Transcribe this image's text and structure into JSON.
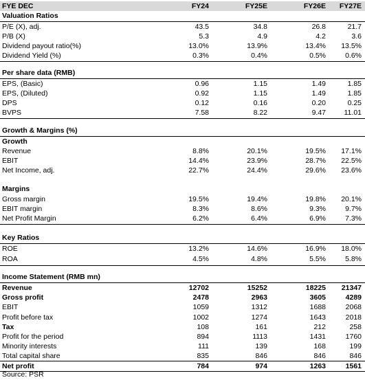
{
  "header": {
    "label": "FYE DEC",
    "years": [
      "FY24",
      "FY25E",
      "FY26E",
      "FY27E"
    ]
  },
  "valuation": {
    "title": "Valuation Ratios",
    "rows": [
      {
        "label": "P/E (X), adj.",
        "values": [
          "43.5",
          "34.8",
          "26.8",
          "21.7"
        ]
      },
      {
        "label": "P/B (X)",
        "values": [
          "5.3",
          "4.9",
          "4.2",
          "3.6"
        ]
      },
      {
        "label": "Dividend payout ratio(%)",
        "values": [
          "13.0%",
          "13.9%",
          "13.4%",
          "13.5%"
        ]
      },
      {
        "label": "Dividend Yield (%)",
        "values": [
          "0.3%",
          "0.4%",
          "0.5%",
          "0.6%"
        ]
      }
    ]
  },
  "per_share": {
    "title": "Per share data (RMB)",
    "rows": [
      {
        "label": "EPS, (Basic)",
        "values": [
          "0.96",
          "1.15",
          "1.49",
          "1.85"
        ]
      },
      {
        "label": "EPS, (Diluted)",
        "values": [
          "0.92",
          "1.15",
          "1.49",
          "1.85"
        ]
      },
      {
        "label": "DPS",
        "values": [
          "0.12",
          "0.16",
          "0.20",
          "0.25"
        ]
      },
      {
        "label": "BVPS",
        "values": [
          "7.58",
          "8.22",
          "9.47",
          "11.01"
        ]
      }
    ]
  },
  "growth_margins": {
    "title": "Growth & Margins (%)",
    "growth_title": "Growth",
    "growth_rows": [
      {
        "label": "Revenue",
        "values": [
          "8.8%",
          "20.1%",
          "19.5%",
          "17.1%"
        ]
      },
      {
        "label": "EBIT",
        "values": [
          "14.4%",
          "23.9%",
          "28.7%",
          "22.5%"
        ]
      },
      {
        "label": "Net Income, adj.",
        "values": [
          "22.7%",
          "24.4%",
          "29.6%",
          "23.6%"
        ]
      }
    ],
    "margins_title": "Margins",
    "margin_rows": [
      {
        "label": "Gross margin",
        "values": [
          "19.5%",
          "19.4%",
          "19.8%",
          "20.1%"
        ]
      },
      {
        "label": "EBIT margin",
        "values": [
          "8.3%",
          "8.6%",
          "9.3%",
          "9.7%"
        ]
      },
      {
        "label": "Net Profit Margin",
        "values": [
          "6.2%",
          "6.4%",
          "6.9%",
          "7.3%"
        ]
      }
    ]
  },
  "key_ratios": {
    "title": "Key Ratios",
    "rows": [
      {
        "label": "ROE",
        "values": [
          "13.2%",
          "14.6%",
          "16.9%",
          "18.0%"
        ]
      },
      {
        "label": "ROA",
        "values": [
          "4.5%",
          "4.8%",
          "5.5%",
          "5.8%"
        ]
      }
    ]
  },
  "income_statement": {
    "title": "Income Statement (RMB mn)",
    "rows": [
      {
        "label": "Revenue",
        "values": [
          "12702",
          "15252",
          "18225",
          "21347"
        ],
        "bold": true
      },
      {
        "label": "Gross profit",
        "values": [
          "2478",
          "2963",
          "3605",
          "4289"
        ],
        "bold": true
      },
      {
        "label": "EBIT",
        "values": [
          "1059",
          "1312",
          "1688",
          "2068"
        ]
      },
      {
        "label": "Profit before tax",
        "values": [
          "1002",
          "1274",
          "1643",
          "2018"
        ]
      },
      {
        "label": "Tax",
        "values": [
          "108",
          "161",
          "212",
          "258"
        ],
        "bold": true
      },
      {
        "label": "Profit for the period",
        "values": [
          "894",
          "1113",
          "1431",
          "1760"
        ]
      },
      {
        "label": "Minority interests",
        "values": [
          "111",
          "139",
          "168",
          "199"
        ]
      },
      {
        "label": "Total capital share",
        "values": [
          "835",
          "846",
          "846",
          "846"
        ]
      },
      {
        "label": "Net profit",
        "values": [
          "784",
          "974",
          "1263",
          "1561"
        ],
        "bold": true
      }
    ]
  },
  "source": "Source: PSR"
}
